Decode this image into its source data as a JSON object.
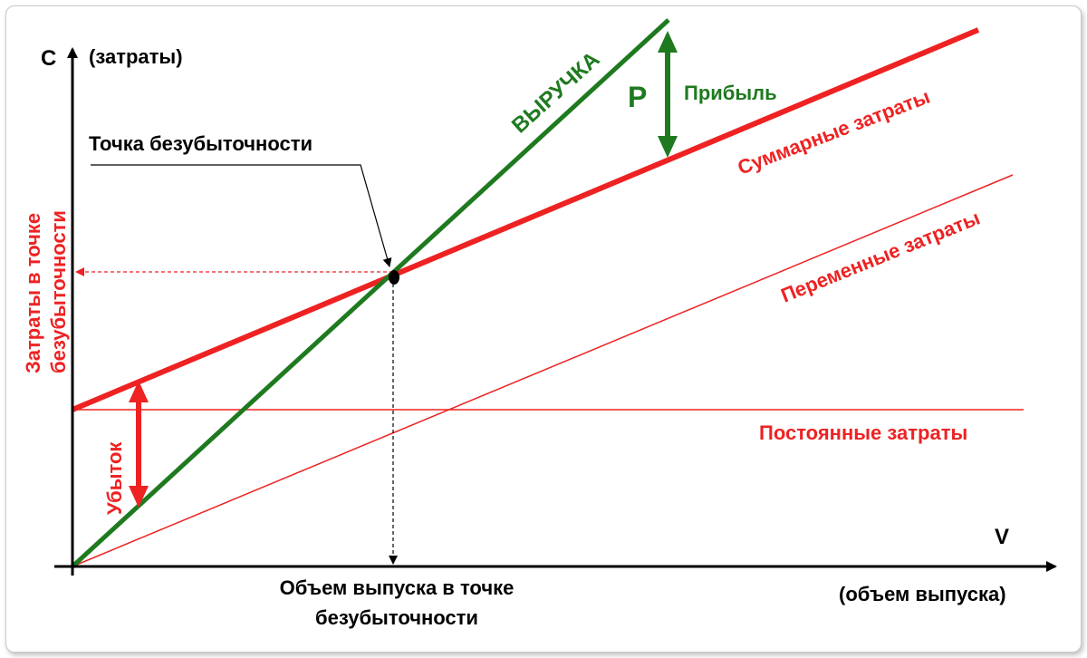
{
  "axes": {
    "y_symbol": "C",
    "y_caption": "(затраты)",
    "x_symbol": "V",
    "x_caption": "(объем выпуска)"
  },
  "lines": {
    "revenue": "ВЫРУЧКА",
    "total_costs": "Суммарные затраты",
    "variable_costs": "Переменные затраты",
    "fixed_costs": "Постоянные затраты"
  },
  "annotations": {
    "break_even_point": "Точка безубыточности",
    "profit_symbol": "P",
    "profit": "Прибыль",
    "loss": "Убыток",
    "cost_at_break_even_line1": "Затраты в точке",
    "cost_at_break_even_line2": "безубыточности",
    "volume_at_break_even_line1": "Объем выпуска в точке",
    "volume_at_break_even_line2": "безубыточности"
  },
  "colors": {
    "revenue": "#1f7a1f",
    "costs": "#ee2222",
    "axis": "#000000"
  }
}
